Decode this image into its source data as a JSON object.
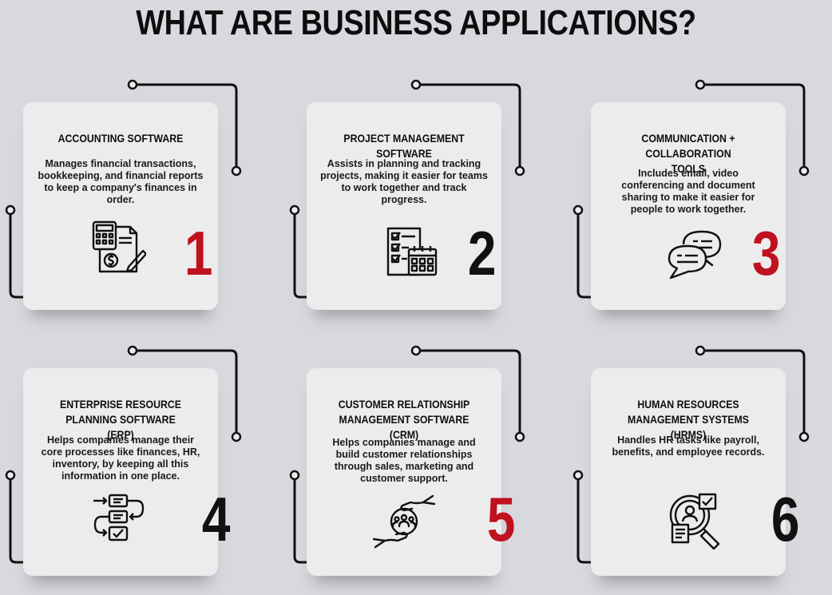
{
  "title": "WHAT ARE BUSINESS APPLICATIONS?",
  "colors": {
    "accent_red": "#c0111e",
    "dark": "#111111",
    "card_bg": "#ececed",
    "page_bg": "#d7d9de"
  },
  "cards": [
    {
      "number": "1",
      "number_color": "#c0111e",
      "title": "ACCOUNTING SOFTWARE",
      "description": "Manages financial transactions, bookkeeping, and financial reports to keep a company's finances in order.",
      "icon": "calculator-invoice-icon"
    },
    {
      "number": "2",
      "number_color": "#111111",
      "title": "PROJECT MANAGEMENT SOFTWARE",
      "description": "Assists in planning and tracking projects, making it easier for teams to work together and track progress.",
      "icon": "checklist-calendar-icon"
    },
    {
      "number": "3",
      "number_color": "#c0111e",
      "title": "COMMUNICATION + COLLABORATION TOOLS",
      "description": "Includes email, video conferencing and document sharing to make it easier for people to work together.",
      "icon": "chat-bubbles-icon"
    },
    {
      "number": "4",
      "number_color": "#111111",
      "title": "ENTERPRISE RESOURCE PLANNING SOFTWARE (ERP)",
      "description": "Helps companies manage their core processes like finances, HR, inventory, by keeping all this information in one place.",
      "icon": "process-flow-icon"
    },
    {
      "number": "5",
      "number_color": "#c0111e",
      "title": "CUSTOMER RELATIONSHIP MANAGEMENT SOFTWARE (CRM)",
      "description": "Helps companies manage and build customer relationships through sales, marketing and customer support.",
      "icon": "hands-customers-icon"
    },
    {
      "number": "6",
      "number_color": "#111111",
      "title": "HUMAN RESOURCES MANAGEMENT SYSTEMS (HRMS)",
      "description": "Handles HR tasks like payroll, benefits, and employee records.",
      "icon": "magnifier-profile-icon"
    }
  ]
}
